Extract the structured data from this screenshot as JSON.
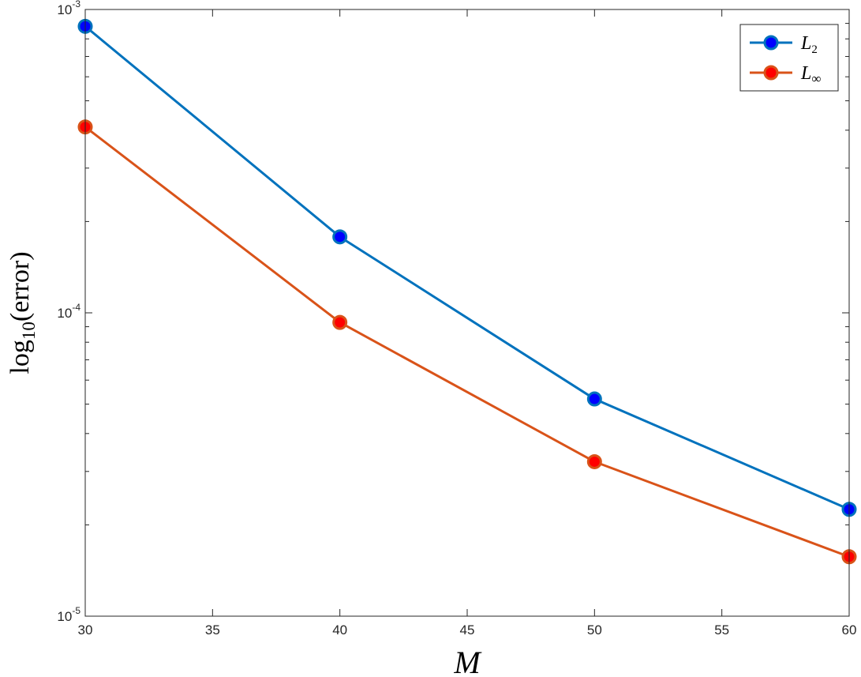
{
  "chart_data": {
    "type": "line",
    "x": [
      30,
      40,
      50,
      60
    ],
    "xlim": [
      30,
      60
    ],
    "ylim": [
      1e-05,
      0.001
    ],
    "yscale": "log",
    "xticks": [
      30,
      35,
      40,
      45,
      50,
      55,
      60
    ],
    "xlabel": "M",
    "ylabel": {
      "base": "log",
      "sub": "10",
      "rest": "(error)"
    },
    "yticks": [
      {
        "value": 0.001,
        "base": "10",
        "exp": "-3"
      },
      {
        "value": 0.0001,
        "base": "10",
        "exp": "-4"
      },
      {
        "value": 1e-05,
        "base": "10",
        "exp": "-5"
      }
    ],
    "legend_position": "top-right",
    "grid": false,
    "series": [
      {
        "name": "L",
        "name_sub": "2",
        "color": "#0072BD",
        "marker_fill": "#0000ff",
        "values": [
          0.00088,
          0.000178,
          5.2e-05,
          2.25e-05
        ]
      },
      {
        "name": "L",
        "name_sub": "∞",
        "color": "#D95319",
        "marker_fill": "#ff0000",
        "values": [
          0.00041,
          9.3e-05,
          3.23e-05,
          1.57e-05
        ]
      }
    ]
  }
}
